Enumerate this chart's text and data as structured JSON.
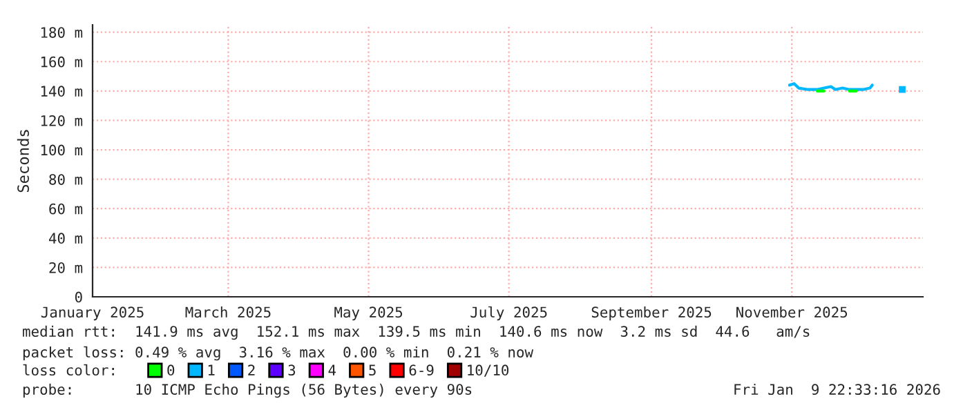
{
  "chart_data": {
    "type": "line",
    "ylabel": "Seconds",
    "x": [
      "2025-10-31",
      "2025-11-02",
      "2025-11-04",
      "2025-11-08",
      "2025-11-12",
      "2025-11-15",
      "2025-11-18",
      "2025-11-20",
      "2025-11-23",
      "2025-11-26",
      "2025-11-29",
      "2025-12-02",
      "2025-12-05",
      "2025-12-06",
      "2025-12-12",
      "2025-12-19"
    ],
    "series": [
      {
        "name": "0",
        "color": "#00ff00",
        "values": [
          null,
          null,
          null,
          null,
          140,
          140,
          null,
          null,
          null,
          140,
          140,
          null,
          null,
          null,
          null,
          null
        ]
      },
      {
        "name": "1",
        "color": "#00b8ff",
        "values": [
          144,
          145,
          142,
          141,
          141,
          142,
          143,
          141,
          142,
          141,
          141,
          141,
          142,
          144,
          null,
          141
        ]
      },
      {
        "name": "2",
        "color": "#0059ff",
        "values": [
          null,
          null,
          null,
          null,
          null,
          null,
          null,
          null,
          null,
          null,
          null,
          null,
          null,
          null,
          null,
          null
        ]
      },
      {
        "name": "3",
        "color": "#5e00ff",
        "values": [
          null,
          null,
          null,
          null,
          null,
          null,
          null,
          null,
          null,
          null,
          null,
          null,
          null,
          null,
          null,
          null
        ]
      },
      {
        "name": "4",
        "color": "#ff00ff",
        "values": [
          null,
          null,
          null,
          null,
          null,
          null,
          null,
          null,
          null,
          null,
          null,
          null,
          null,
          null,
          null,
          null
        ]
      },
      {
        "name": "5",
        "color": "#ff5500",
        "values": [
          null,
          null,
          null,
          null,
          null,
          null,
          null,
          null,
          null,
          null,
          null,
          null,
          null,
          null,
          null,
          null
        ]
      },
      {
        "name": "6-9",
        "color": "#ff0000",
        "values": [
          null,
          null,
          null,
          null,
          null,
          null,
          null,
          null,
          null,
          null,
          null,
          null,
          null,
          null,
          null,
          null
        ]
      },
      {
        "name": "10/10",
        "color": "#a10000",
        "values": [
          null,
          null,
          null,
          null,
          null,
          null,
          null,
          null,
          null,
          null,
          null,
          null,
          null,
          null,
          null,
          null
        ]
      }
    ],
    "legend_title": "loss color:",
    "legend": "bottom",
    "xlim": [
      "2025-01-01",
      "2025-12-28"
    ],
    "xticks": [
      {
        "value": "2025-01-01",
        "label": "January 2025"
      },
      {
        "value": "2025-03-01",
        "label": "March 2025"
      },
      {
        "value": "2025-05-01",
        "label": "May 2025"
      },
      {
        "value": "2025-07-01",
        "label": "July 2025"
      },
      {
        "value": "2025-09-01",
        "label": "September 2025"
      },
      {
        "value": "2025-11-01",
        "label": "November 2025"
      }
    ],
    "ylim": [
      0,
      185
    ],
    "yticks": [
      0,
      {
        "value": 20,
        "label": "20 m"
      },
      {
        "value": 40,
        "label": "40 m"
      },
      {
        "value": 60,
        "label": "60 m"
      },
      {
        "value": 80,
        "label": "80 m"
      },
      {
        "value": 100,
        "label": "100 m"
      },
      {
        "value": 120,
        "label": "120 m"
      },
      {
        "value": 140,
        "label": "140 m"
      },
      {
        "value": 160,
        "label": "160 m"
      },
      {
        "value": 180,
        "label": "180 m"
      }
    ],
    "grid": true,
    "annotations": [
      "median rtt:  141.9 ms avg  152.1 ms max  139.5 ms min  140.6 ms now  3.2 ms sd  44.6   am/s",
      "packet loss: 0.49 % avg  3.16 % max  0.00 % min  0.21 % now",
      "probe:       10 ICMP Echo Pings (56 Bytes) every 90s",
      "Fri Jan  9 22:33:16 2026"
    ]
  }
}
